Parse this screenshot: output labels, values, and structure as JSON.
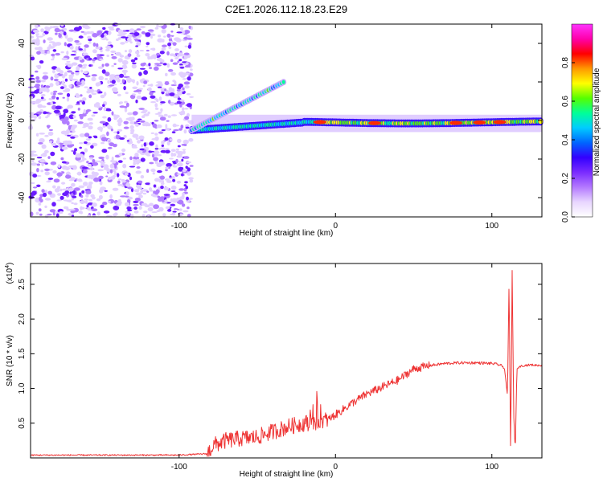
{
  "figure_title": "C2E1.2026.112.18.23.E29",
  "colors": {
    "snr_line": "#ee3333",
    "dots": "#8a2be2",
    "axis": "#000000"
  },
  "colormap_stops": [
    "#ffffff",
    "#e8d6ff",
    "#b479ff",
    "#7a2cff",
    "#3300ff",
    "#0066ff",
    "#00ccff",
    "#00ff99",
    "#55ff00",
    "#ffff00",
    "#ff9900",
    "#ff0000",
    "#ff00aa",
    "#ff33ff"
  ],
  "chart_data": [
    {
      "type": "heatmap",
      "title": "C2E1.2026.112.18.23.E29",
      "xlabel": "Height of straight line (km)",
      "ylabel": "Frequency (Hz)",
      "xlim": [
        -195,
        132
      ],
      "ylim": [
        -50,
        50
      ],
      "xticks": [
        -100,
        0,
        100
      ],
      "xtick_labels": [
        "-100",
        "0",
        "100"
      ],
      "yticks": [
        -40,
        -20,
        0,
        20,
        40
      ],
      "ytick_labels": [
        "-40",
        "-20",
        "0",
        "20",
        "40"
      ],
      "colorbar": {
        "label": "Normalized spectral amplitude",
        "range": [
          0,
          1
        ],
        "ticks": [
          0.0,
          0.2,
          0.4,
          0.6,
          0.8
        ],
        "tick_labels": [
          "0.0",
          "0.2",
          "0.4",
          "0.6",
          "0.8"
        ]
      },
      "features": {
        "noise_region_x": [
          -195,
          -92
        ],
        "main_ridge": {
          "x": [
            -92,
            132
          ],
          "freq": [
            -5,
            0
          ],
          "peak_amplitude": 1.0
        },
        "upper_branch": {
          "x": [
            -92,
            -33
          ],
          "freq": [
            -5,
            20
          ]
        },
        "high_amplitude_x": [
          -10,
          25,
          77,
          92,
          105
        ]
      }
    },
    {
      "type": "line",
      "xlabel": "Height of straight line (km)",
      "ylabel": "SNR (10 * v/v)",
      "y_scale_label": "(x10",
      "y_scale_exponent": "4",
      "xlim": [
        -195,
        132
      ],
      "ylim": [
        0,
        2.8
      ],
      "xticks": [
        -100,
        0,
        100
      ],
      "xtick_labels": [
        "-100",
        "0",
        "100"
      ],
      "yticks": [
        0.5,
        1.0,
        1.5,
        2.0,
        2.5
      ],
      "ytick_labels": [
        "0.5",
        "1.0",
        "1.5",
        "2.0",
        "2.5"
      ],
      "series": [
        {
          "name": "SNR",
          "x": [
            -195,
            -150,
            -100,
            -82,
            -78,
            -70,
            -60,
            -50,
            -40,
            -30,
            -20,
            -12,
            -5,
            0,
            10,
            20,
            30,
            40,
            50,
            60,
            70,
            80,
            90,
            100,
            105,
            108,
            110,
            111,
            112,
            113,
            114,
            115,
            116,
            118,
            120,
            125,
            132
          ],
          "values": [
            0.04,
            0.04,
            0.04,
            0.06,
            0.18,
            0.25,
            0.28,
            0.3,
            0.38,
            0.45,
            0.5,
            0.52,
            0.55,
            0.62,
            0.78,
            0.92,
            1.02,
            1.12,
            1.28,
            1.33,
            1.36,
            1.37,
            1.37,
            1.36,
            1.34,
            1.3,
            0.9,
            2.6,
            0.05,
            2.7,
            0.6,
            0.1,
            1.28,
            1.32,
            1.33,
            1.34,
            1.33
          ]
        }
      ]
    }
  ]
}
